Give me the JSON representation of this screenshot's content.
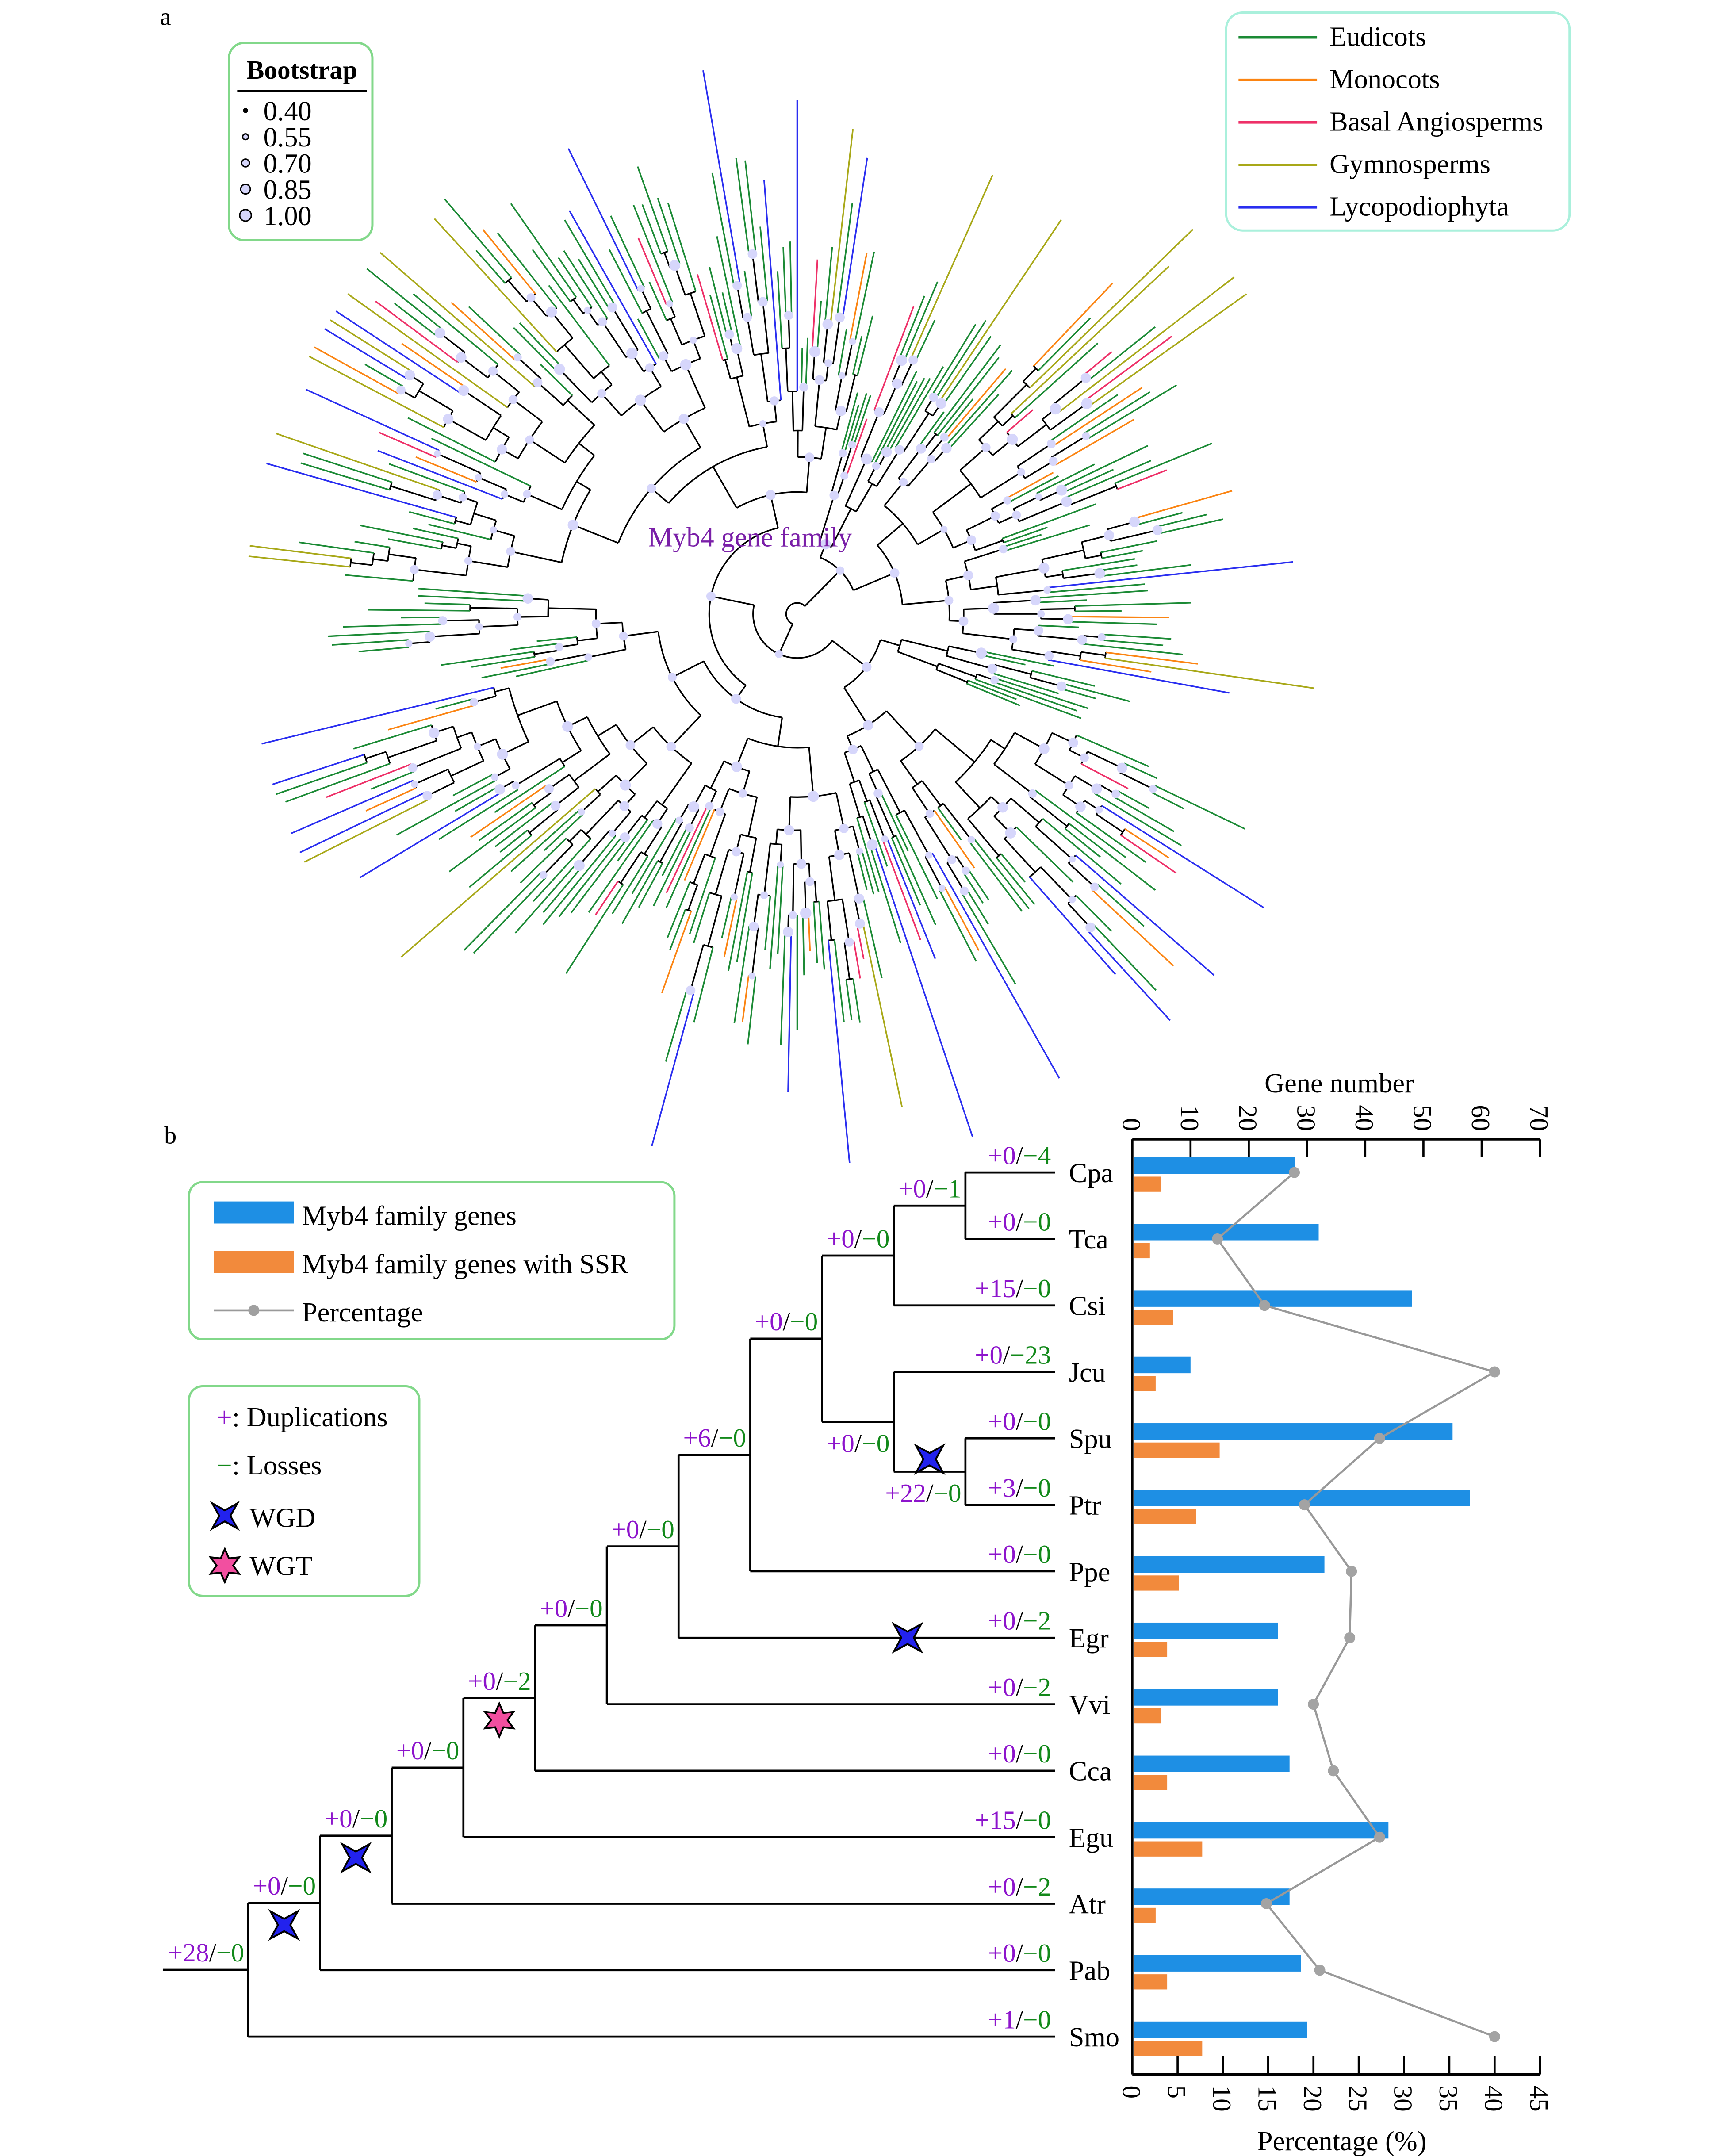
{
  "panel_labels": {
    "a": "a",
    "b": "b"
  },
  "panel_a": {
    "title": "Myb4 gene family",
    "title_color": "#7a1fa8",
    "bootstrap_legend": {
      "title": "Bootstrap",
      "values": [
        "0.40",
        "0.55",
        "0.70",
        "0.85",
        "1.00"
      ],
      "dot_color": "#d6d6fb"
    },
    "clade_legend": [
      {
        "label": "Eudicots",
        "color": "#1b8a35"
      },
      {
        "label": "Monocots",
        "color": "#fb8412"
      },
      {
        "label": "Basal Angiosperms",
        "color": "#ee3068"
      },
      {
        "label": "Gymnosperms",
        "color": "#a8a818"
      },
      {
        "label": "Lycopodiophyta",
        "color": "#2a2ef0"
      }
    ]
  },
  "panel_b": {
    "legend": {
      "items": [
        {
          "label": "Myb4 family genes",
          "color": "#1e8fe4"
        },
        {
          "label": "Myb4 family genes with SSR",
          "color": "#f28a3c"
        },
        {
          "label": "Percentage",
          "color": "#999999"
        }
      ]
    },
    "events_legend": {
      "duplications": {
        "symbol": "+",
        "label": ": Duplications"
      },
      "losses": {
        "symbol": "−",
        "label": ": Losses"
      },
      "wgd": {
        "label": "WGD",
        "color": "#2222ee",
        "icon": "four-point-star-icon"
      },
      "wgt": {
        "label": "WGT",
        "color": "#f24fa0",
        "icon": "six-point-star-icon"
      }
    },
    "tree": {
      "separator": "/",
      "root": {
        "dup": "+28",
        "loss": "−0",
        "children": [
          {
            "dup": "+0",
            "loss": "−0",
            "event": "WGD",
            "children": [
              {
                "dup": "+0",
                "loss": "−0",
                "event": "WGD",
                "children": [
                  {
                    "dup": "+0",
                    "loss": "−0",
                    "children": [
                      {
                        "dup": "+0",
                        "loss": "−2",
                        "event": "WGT",
                        "children": [
                          {
                            "dup": "+0",
                            "loss": "−0",
                            "children": [
                              {
                                "dup": "+0",
                                "loss": "−0",
                                "children": [
                                  {
                                    "dup": "+6",
                                    "loss": "−0",
                                    "children": [
                                      {
                                        "dup": "+0",
                                        "loss": "−0",
                                        "children": [
                                          {
                                            "dup": "+0",
                                            "loss": "−0",
                                            "children": [
                                              {
                                                "dup": "+0",
                                                "loss": "−1",
                                                "children": [
                                                  {
                                                    "name": "Cpa",
                                                    "dup": "+0",
                                                    "loss": "−4"
                                                  },
                                                  {
                                                    "name": "Tca",
                                                    "dup": "+0",
                                                    "loss": "−0"
                                                  }
                                                ]
                                              },
                                              {
                                                "name": "Csi",
                                                "dup": "+15",
                                                "loss": "−0"
                                              }
                                            ]
                                          },
                                          {
                                            "dup": "+0",
                                            "loss": "−0",
                                            "children": [
                                              {
                                                "name": "Jcu",
                                                "dup": "+0",
                                                "loss": "−23"
                                              },
                                              {
                                                "dup": "+22",
                                                "loss": "−0",
                                                "event": "WGD",
                                                "children": [
                                                  {
                                                    "name": "Spu",
                                                    "dup": "+0",
                                                    "loss": "−0"
                                                  },
                                                  {
                                                    "name": "Ptr",
                                                    "dup": "+3",
                                                    "loss": "−0"
                                                  }
                                                ]
                                              }
                                            ]
                                          }
                                        ]
                                      },
                                      {
                                        "name": "Ppe",
                                        "dup": "+0",
                                        "loss": "−0"
                                      }
                                    ]
                                  },
                                  {
                                    "name": "Egr",
                                    "dup": "+0",
                                    "loss": "−2",
                                    "event": "WGD"
                                  }
                                ]
                              },
                              {
                                "name": "Vvi",
                                "dup": "+0",
                                "loss": "−2"
                              }
                            ]
                          },
                          {
                            "name": "Cca",
                            "dup": "+0",
                            "loss": "−0"
                          }
                        ]
                      },
                      {
                        "name": "Egu",
                        "dup": "+15",
                        "loss": "−0"
                      }
                    ]
                  },
                  {
                    "name": "Atr",
                    "dup": "+0",
                    "loss": "−2"
                  }
                ]
              },
              {
                "name": "Pab",
                "dup": "+0",
                "loss": "−0"
              }
            ]
          },
          {
            "name": "Smo",
            "dup": "+1",
            "loss": "−0"
          }
        ]
      }
    }
  },
  "chart_data": {
    "type": "bar",
    "orientation": "horizontal",
    "categories": [
      "Cpa",
      "Tca",
      "Csi",
      "Jcu",
      "Spu",
      "Ptr",
      "Ppe",
      "Egr",
      "Vvi",
      "Cca",
      "Egu",
      "Atr",
      "Pab",
      "Smo"
    ],
    "series": [
      {
        "name": "Myb4 family genes",
        "axis": "top",
        "color": "#1e8fe4",
        "values": [
          28,
          32,
          48,
          10,
          55,
          58,
          33,
          25,
          25,
          27,
          44,
          27,
          29,
          30
        ]
      },
      {
        "name": "Myb4 family genes with SSR",
        "axis": "top",
        "color": "#f28a3c",
        "values": [
          5,
          3,
          7,
          4,
          15,
          11,
          8,
          6,
          5,
          6,
          12,
          4,
          6,
          12
        ]
      },
      {
        "name": "Percentage",
        "axis": "bottom",
        "type": "line",
        "color": "#999999",
        "values": [
          17.9,
          9.4,
          14.6,
          40.0,
          27.3,
          19.0,
          24.2,
          24.0,
          20.0,
          22.2,
          27.3,
          14.8,
          20.7,
          40.0
        ]
      }
    ],
    "top_axis": {
      "label": "Gene number",
      "lim": [
        0,
        70
      ],
      "ticks": [
        "0",
        "10",
        "20",
        "30",
        "40",
        "50",
        "60",
        "70"
      ]
    },
    "bottom_axis": {
      "label": "Percentage (%)",
      "lim": [
        0,
        45
      ],
      "ticks": [
        "0",
        "5",
        "10",
        "15",
        "20",
        "25",
        "30",
        "35",
        "40",
        "45"
      ]
    },
    "grid": false
  }
}
